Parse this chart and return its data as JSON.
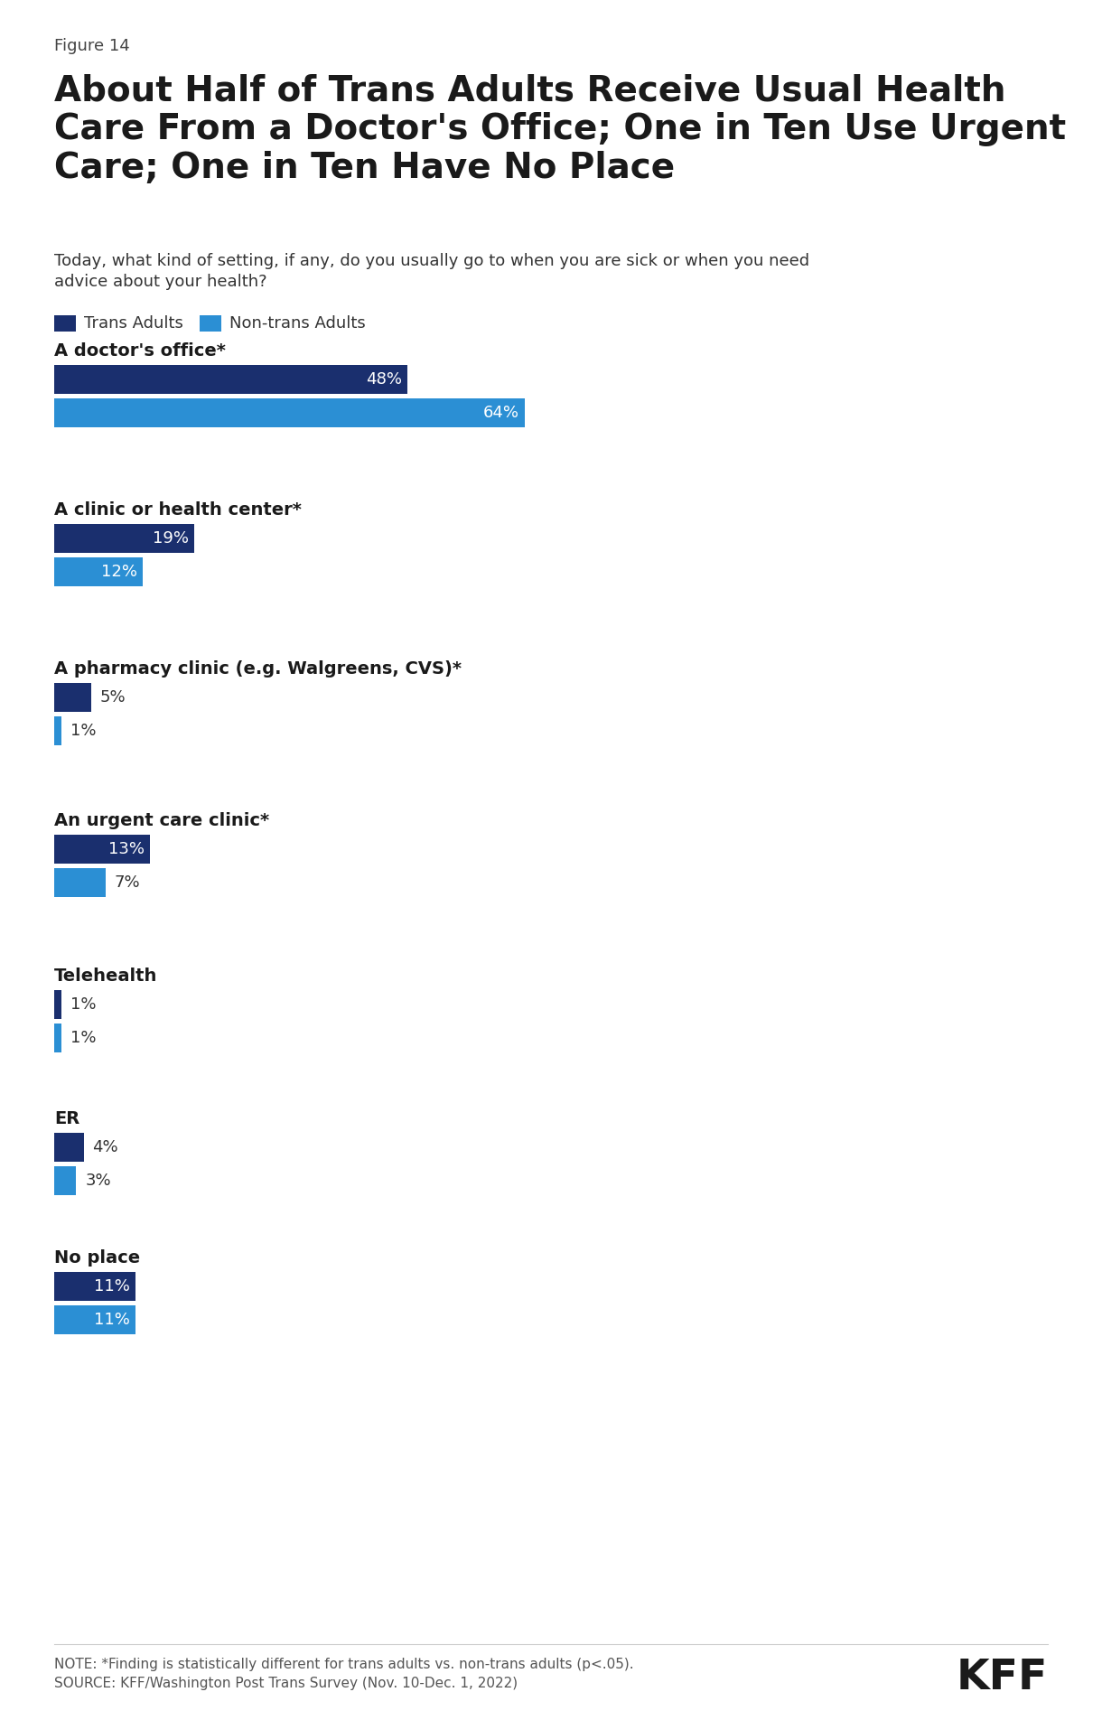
{
  "figure_label": "Figure 14",
  "title": "About Half of Trans Adults Receive Usual Health\nCare From a Doctor's Office; One in Ten Use Urgent\nCare; One in Ten Have No Place",
  "subtitle": "Today, what kind of setting, if any, do you usually go to when you are sick or when you need\nadvice about your health?",
  "legend_labels": [
    "Trans Adults",
    "Non-trans Adults"
  ],
  "trans_color": "#1a2f6e",
  "nontrans_color": "#2b8fd4",
  "categories": [
    "A doctor's office*",
    "A clinic or health center*",
    "A pharmacy clinic (e.g. Walgreens, CVS)*",
    "An urgent care clinic*",
    "Telehealth",
    "ER",
    "No place"
  ],
  "trans_values": [
    48,
    19,
    5,
    13,
    1,
    4,
    11
  ],
  "nontrans_values": [
    64,
    12,
    1,
    7,
    1,
    3,
    11
  ],
  "note": "NOTE: *Finding is statistically different for trans adults vs. non-trans adults (p<.05).\nSOURCE: KFF/Washington Post Trans Survey (Nov. 10-Dec. 1, 2022)",
  "kff_label": "KFF",
  "background_color": "#ffffff",
  "max_value": 70,
  "title_fontsize": 28,
  "figure_label_fontsize": 13,
  "subtitle_fontsize": 13,
  "category_fontsize": 14,
  "value_fontsize": 13,
  "legend_fontsize": 13,
  "note_fontsize": 11
}
